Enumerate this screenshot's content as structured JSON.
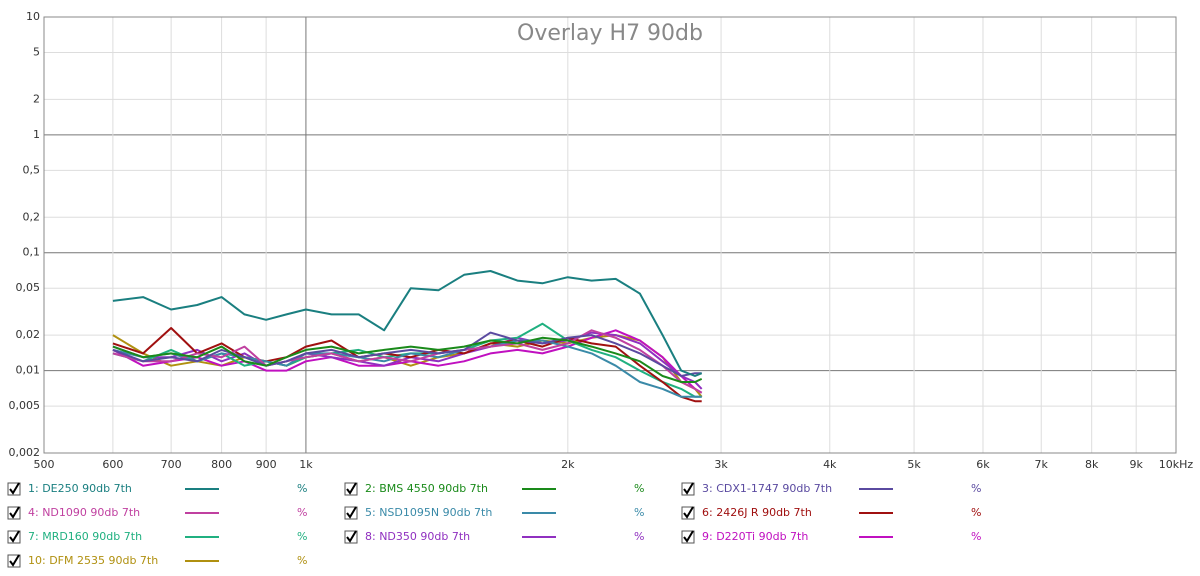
{
  "chart_data": {
    "type": "line",
    "title": "Overlay H7 90db",
    "x": [
      600,
      650,
      700,
      750,
      800,
      850,
      900,
      950,
      1000,
      1070,
      1150,
      1230,
      1320,
      1420,
      1520,
      1630,
      1750,
      1870,
      2000,
      2130,
      2270,
      2420,
      2570,
      2700,
      2800,
      2850
    ],
    "xlim": [
      500,
      10000
    ],
    "ylim": [
      0.002,
      10
    ],
    "xscale": "log",
    "yscale": "log",
    "grid": true,
    "xticks": [
      500,
      600,
      700,
      800,
      900,
      {
        "value": 1000,
        "label": "1k"
      },
      {
        "value": 2000,
        "label": "2k"
      },
      {
        "value": 3000,
        "label": "3k"
      },
      {
        "value": 4000,
        "label": "4k"
      },
      {
        "value": 5000,
        "label": "5k"
      },
      {
        "value": 6000,
        "label": "6k"
      },
      {
        "value": 7000,
        "label": "7k"
      },
      {
        "value": 8000,
        "label": "8k"
      },
      {
        "value": 9000,
        "label": "9k"
      },
      {
        "value": 10000,
        "label": "10kHz"
      }
    ],
    "yticks": [
      {
        "value": 0.002,
        "label": "0,002"
      },
      {
        "value": 0.005,
        "label": "0,005"
      },
      {
        "value": 0.01,
        "label": "0,01"
      },
      {
        "value": 0.02,
        "label": "0,02"
      },
      {
        "value": 0.05,
        "label": "0,05"
      },
      {
        "value": 0.1,
        "label": "0,1"
      },
      {
        "value": 0.2,
        "label": "0,2"
      },
      {
        "value": 0.5,
        "label": "0,5"
      },
      1,
      2,
      5,
      10
    ],
    "legend_unit": "%",
    "series": [
      {
        "name": "1: DE250 90db 7th",
        "color": "#1a7f80",
        "values": [
          0.039,
          0.042,
          0.033,
          0.036,
          0.042,
          0.03,
          0.027,
          0.03,
          0.033,
          0.03,
          0.03,
          0.022,
          0.05,
          0.048,
          0.065,
          0.07,
          0.058,
          0.055,
          0.062,
          0.058,
          0.06,
          0.045,
          0.02,
          0.01,
          0.009,
          0.0095
        ]
      },
      {
        "name": "2: BMS 4550 90db 7th",
        "color": "#1a8a1a",
        "values": [
          0.016,
          0.013,
          0.014,
          0.013,
          0.016,
          0.012,
          0.011,
          0.013,
          0.015,
          0.016,
          0.014,
          0.015,
          0.016,
          0.015,
          0.016,
          0.018,
          0.017,
          0.019,
          0.018,
          0.016,
          0.014,
          0.012,
          0.009,
          0.008,
          0.008,
          0.0085
        ]
      },
      {
        "name": "3: CDX1-1747 90db 7th",
        "color": "#5a4aa0",
        "values": [
          0.015,
          0.012,
          0.013,
          0.012,
          0.015,
          0.013,
          0.011,
          0.012,
          0.014,
          0.015,
          0.013,
          0.014,
          0.015,
          0.014,
          0.015,
          0.021,
          0.018,
          0.017,
          0.019,
          0.02,
          0.017,
          0.014,
          0.011,
          0.009,
          0.0095,
          0.0095
        ]
      },
      {
        "name": "4: ND1090 90db 7th",
        "color": "#c040a0",
        "values": [
          0.014,
          0.012,
          0.012,
          0.014,
          0.013,
          0.016,
          0.011,
          0.012,
          0.013,
          0.014,
          0.012,
          0.013,
          0.012,
          0.014,
          0.015,
          0.016,
          0.017,
          0.015,
          0.017,
          0.022,
          0.019,
          0.015,
          0.011,
          0.008,
          0.007,
          0.0065
        ]
      },
      {
        "name": "5: NSD1095N 90db 7th",
        "color": "#3a8aa8",
        "values": [
          0.015,
          0.013,
          0.014,
          0.012,
          0.014,
          0.013,
          0.012,
          0.011,
          0.014,
          0.014,
          0.013,
          0.012,
          0.014,
          0.013,
          0.015,
          0.016,
          0.018,
          0.018,
          0.016,
          0.014,
          0.011,
          0.008,
          0.007,
          0.006,
          0.006,
          0.006
        ]
      },
      {
        "name": "6: 2426J R 90db 7th",
        "color": "#a01010",
        "values": [
          0.017,
          0.014,
          0.023,
          0.014,
          0.017,
          0.013,
          0.012,
          0.013,
          0.016,
          0.018,
          0.013,
          0.014,
          0.013,
          0.015,
          0.014,
          0.017,
          0.018,
          0.016,
          0.019,
          0.017,
          0.016,
          0.011,
          0.008,
          0.006,
          0.0055,
          0.0055
        ]
      },
      {
        "name": "7: MRD160 90db 7th",
        "color": "#20b080",
        "values": [
          0.014,
          0.012,
          0.015,
          0.012,
          0.014,
          0.011,
          0.012,
          0.011,
          0.013,
          0.014,
          0.015,
          0.013,
          0.014,
          0.014,
          0.015,
          0.018,
          0.019,
          0.025,
          0.018,
          0.015,
          0.013,
          0.01,
          0.008,
          0.007,
          0.006,
          0.006
        ]
      },
      {
        "name": "8: ND350 90db 7th",
        "color": "#9030c0",
        "values": [
          0.016,
          0.013,
          0.013,
          0.015,
          0.012,
          0.014,
          0.011,
          0.012,
          0.014,
          0.013,
          0.012,
          0.011,
          0.013,
          0.012,
          0.014,
          0.016,
          0.019,
          0.017,
          0.018,
          0.021,
          0.02,
          0.017,
          0.012,
          0.009,
          0.008,
          0.007
        ]
      },
      {
        "name": "9: D220Ti 90db 7th",
        "color": "#c010c0",
        "values": [
          0.015,
          0.011,
          0.012,
          0.013,
          0.011,
          0.012,
          0.01,
          0.01,
          0.012,
          0.013,
          0.011,
          0.011,
          0.012,
          0.011,
          0.012,
          0.014,
          0.015,
          0.014,
          0.016,
          0.019,
          0.022,
          0.018,
          0.013,
          0.009,
          0.007,
          0.0065
        ]
      },
      {
        "name": "10: DFM 2535 90db 7th",
        "color": "#b09010",
        "values": [
          0.02,
          0.014,
          0.011,
          0.012,
          0.011,
          0.013,
          0.012,
          0.011,
          0.013,
          0.014,
          0.012,
          0.013,
          0.011,
          0.013,
          0.014,
          0.017,
          0.016,
          0.018,
          0.017,
          0.019,
          0.02,
          0.018,
          0.013,
          0.008,
          0.007,
          0.006
        ]
      }
    ]
  }
}
